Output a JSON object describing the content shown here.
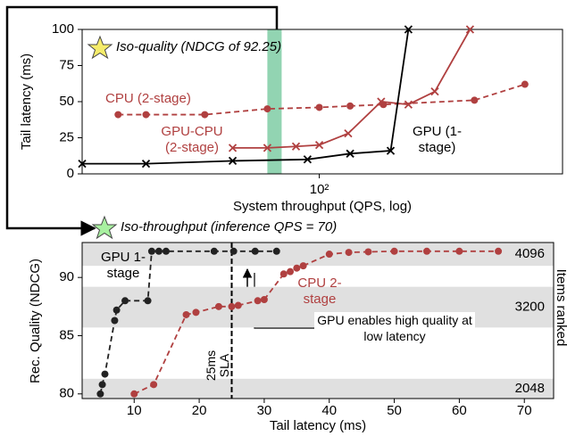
{
  "chart_data": [
    {
      "type": "line",
      "annotation": "Iso-quality (NDCG of 92.25)",
      "xlabel": "System throughput (QPS, log)",
      "ylabel": "Tail latency (ms)",
      "xscale": "log",
      "xlim": [
        15,
        700
      ],
      "xticks": [
        {
          "value": 100,
          "label": "10²"
        }
      ],
      "ylim": [
        0,
        100
      ],
      "yticks": [
        0,
        25,
        50,
        75,
        100
      ],
      "band": {
        "x": [
          66,
          74
        ],
        "color": "#7fcca5"
      },
      "series": [
        {
          "name": "CPU (2-stage)",
          "color": "#b04040",
          "dashed": true,
          "marker": "circle",
          "x": [
            20,
            25,
            40,
            66,
            100,
            128,
            167,
            346,
            518
          ],
          "values": [
            41,
            41,
            41,
            45,
            46,
            47,
            48,
            51,
            62
          ]
        },
        {
          "name": "GPU-CPU (2-stage)",
          "color": "#b04040",
          "dashed": false,
          "marker": "x",
          "x": [
            50,
            66,
            83,
            100,
            126,
            164,
            204,
            252,
            334
          ],
          "values": [
            18,
            18,
            19,
            20,
            28,
            50,
            48,
            57,
            100
          ]
        },
        {
          "name": "GPU (1-stage)",
          "color": "#000000",
          "dashed": false,
          "marker": "x",
          "x": [
            15,
            25,
            50,
            91,
            128,
            177,
            204
          ],
          "values": [
            7,
            7,
            9,
            10,
            14,
            16,
            100
          ]
        }
      ]
    },
    {
      "type": "line",
      "annotation": "Iso-throughput (inference QPS = 70)",
      "xlabel": "Tail latency (ms)",
      "ylabel": "Rec. Quality (NDCG)",
      "xlim": [
        2,
        74.5
      ],
      "xticks": [
        10,
        20,
        30,
        40,
        50,
        60,
        70
      ],
      "ylim": [
        79.6,
        93
      ],
      "yticks": [
        80,
        85,
        90
      ],
      "bands_label": "Items ranked",
      "band_color": "#e0e0e0",
      "bands": [
        {
          "label": "4096",
          "range": [
            91,
            93
          ]
        },
        {
          "label": "3200",
          "range": [
            85.7,
            89.2
          ]
        },
        {
          "label": "2048",
          "range": [
            79.6,
            81.3
          ]
        }
      ],
      "sla": {
        "x": 25,
        "label": "25ms SLA"
      },
      "callout": "GPU enables high quality at low latency",
      "series": [
        {
          "name": "GPU 1-stage",
          "color": "#222222",
          "dashed": true,
          "marker": "circle",
          "x": [
            4.8,
            5.1,
            5.5,
            7.0,
            7.3,
            8.6,
            12.1,
            12.7,
            13.8,
            14.9,
            22.3,
            25.3,
            28.6,
            31.9
          ],
          "values": [
            80,
            80.8,
            81.7,
            86.3,
            87.2,
            88,
            88,
            92.25,
            92.25,
            92.25,
            92.25,
            92.25,
            92.25,
            92.25
          ]
        },
        {
          "name": "CPU 2-stage",
          "color": "#b04040",
          "dashed": true,
          "marker": "circle",
          "x": [
            10,
            13,
            18,
            19.5,
            23,
            25,
            26,
            29,
            30,
            33,
            34,
            35,
            36,
            40,
            43,
            46,
            50,
            55,
            60,
            66
          ],
          "values": [
            80,
            80.8,
            86.8,
            87,
            87.5,
            87.5,
            87.6,
            88,
            88.1,
            90.3,
            90.5,
            90.8,
            91,
            92,
            92.15,
            92.2,
            92.25,
            92.25,
            92.25,
            92.25
          ]
        }
      ]
    }
  ]
}
